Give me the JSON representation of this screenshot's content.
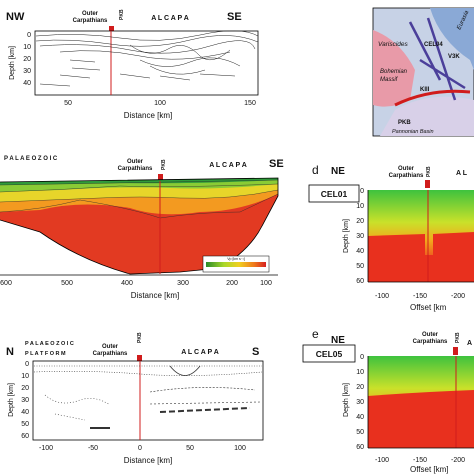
{
  "top_panel": {
    "nw": "NW",
    "se": "SE",
    "outer_l1": "Outer",
    "outer_l2": "Carpathians",
    "pkb": "PKB",
    "alcapa": "A L C A P A",
    "ylabel": "Depth [km]",
    "xlabel": "Distance [km]",
    "yticks": [
      "0",
      "10",
      "20",
      "30",
      "40"
    ],
    "xticks": [
      "50",
      "100",
      "150"
    ]
  },
  "map_panel": {
    "labels": [
      "Variscides",
      "CEL04",
      "V3K",
      "Eurasia",
      "Bohemian",
      "Massif",
      "KIII",
      "PKB",
      "Pannonian Basin"
    ]
  },
  "mid_panel": {
    "palaeozoic": "P A L A E O Z O I C",
    "outer_l1": "Outer",
    "outer_l2": "Carpathians",
    "pkb": "PKB",
    "alcapa": "A L C A P A",
    "se": "SE",
    "xlabel": "Distance [km]",
    "xticks": [
      "600",
      "500",
      "400",
      "300",
      "200",
      "100"
    ],
    "legend_label": "Vp [km s⁻¹]"
  },
  "panel_d": {
    "letter": "d",
    "ne": "NE",
    "outer_l1": "Outer",
    "outer_l2": "Carpathians",
    "pkb": "PKB",
    "alcapa_trunc": "A L",
    "profile": "CEL01",
    "ylabel": "Depth [km]",
    "xlabel": "Offset [km",
    "yticks": [
      "0",
      "10",
      "20",
      "30",
      "40",
      "50",
      "60"
    ],
    "xticks": [
      "-100",
      "-150",
      "-200"
    ]
  },
  "bottom_panel": {
    "n": "N",
    "s": "S",
    "pal_l1": "P A L A E O Z O I C",
    "pal_l2": "P L A T F O R M",
    "outer_l1": "Outer",
    "outer_l2": "Carpathians",
    "pkb": "PKB",
    "alcapa": "A L C A P A",
    "ylabel": "Depth [km]",
    "xlabel": "Distance [km]",
    "yticks": [
      "0",
      "10",
      "20",
      "30",
      "40",
      "50",
      "60"
    ],
    "xticks": [
      "-100",
      "-50",
      "0",
      "50",
      "100"
    ]
  },
  "panel_e": {
    "letter": "e",
    "ne": "NE",
    "outer_l1": "Outer",
    "outer_l2": "Carpathians",
    "pkb": "PKB",
    "alcapa_trunc": "A",
    "profile": "CEL05",
    "ylabel": "Depth [km]",
    "xlabel": "Offset [km]",
    "yticks": [
      "0",
      "10",
      "20",
      "30",
      "40",
      "50",
      "60"
    ],
    "xticks": [
      "-100",
      "-150",
      "-200"
    ]
  },
  "colors": {
    "pkb_red": "#d01c1c",
    "map_pink": "#e89aa8",
    "map_blue": "#8aa9d6",
    "map_purple": "#4b3f9a"
  }
}
